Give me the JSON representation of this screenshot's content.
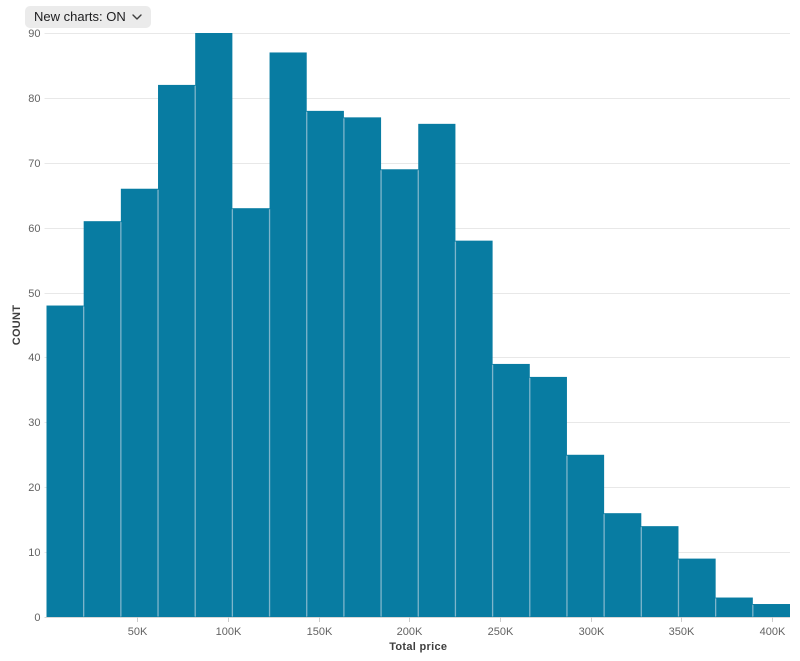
{
  "controls": {
    "new_charts_toggle": {
      "label": "New charts: ON",
      "state": "ON",
      "chevron_icon": "chevron-down"
    }
  },
  "chart_data": {
    "type": "bar",
    "subtype": "histogram",
    "title": "",
    "xlabel": "Total price",
    "ylabel": "COUNT",
    "bins": 20,
    "counts": [
      48,
      61,
      66,
      82,
      90,
      63,
      87,
      78,
      77,
      69,
      76,
      58,
      39,
      37,
      25,
      16,
      14,
      9,
      3,
      2
    ],
    "x_tick_labels": [
      "50K",
      "100K",
      "150K",
      "200K",
      "250K",
      "300K",
      "350K",
      "400K"
    ],
    "x_tick_values": [
      50000,
      100000,
      150000,
      200000,
      250000,
      300000,
      350000,
      400000
    ],
    "x_domain": [
      0,
      410000
    ],
    "y_ticks": [
      0,
      10,
      20,
      30,
      40,
      50,
      60,
      70,
      80,
      90
    ],
    "ylim": [
      0,
      90
    ],
    "grid": "horizontal",
    "legend": "none",
    "colors": {
      "bar": "#087CA2",
      "bar_divider": "#7EB5CB",
      "gridline": "#e8e8e8",
      "baseline": "#d8d8d8",
      "tick_mark": "#cccccc",
      "tick_text": "#636363",
      "axis_title_text": "#3f3f3f",
      "toggle_bg": "#ebebeb",
      "toggle_text": "#1d1d1f"
    }
  }
}
